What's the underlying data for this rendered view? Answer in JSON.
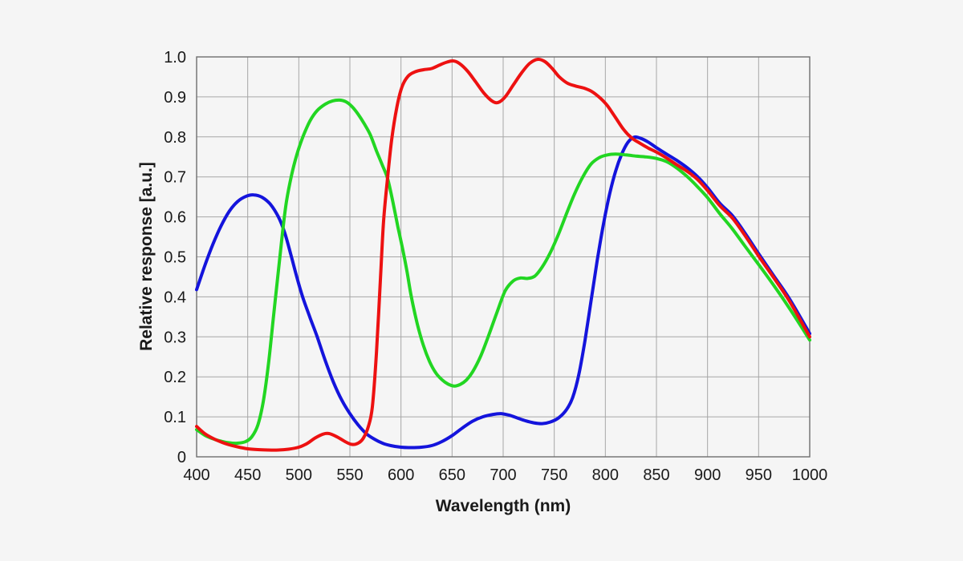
{
  "chart_data": {
    "type": "line",
    "title": "",
    "xlabel": "Wavelength (nm)",
    "ylabel": "Relative response [a.u.]",
    "xlim": [
      400,
      1000
    ],
    "ylim": [
      0,
      1.0
    ],
    "grid": true,
    "legend": "none",
    "x_ticks": [
      400,
      450,
      500,
      550,
      600,
      650,
      700,
      750,
      800,
      850,
      900,
      950,
      1000
    ],
    "x_tick_labels": [
      "400",
      "450",
      "500",
      "550",
      "600",
      "650",
      "700",
      "750",
      "800",
      "850",
      "900",
      "950",
      "1000"
    ],
    "y_ticks": [
      0,
      0.1,
      0.2,
      0.3,
      0.4,
      0.5,
      0.6,
      0.7,
      0.8,
      0.9,
      1.0
    ],
    "y_tick_labels": [
      "0",
      "0.1",
      "0.2",
      "0.3",
      "0.4",
      "0.5",
      "0.6",
      "0.7",
      "0.8",
      "0.9",
      "1.0"
    ],
    "colors": {
      "background": "#f5f5f5",
      "grid": "#a6a6a6",
      "frame": "#6e6e6e",
      "text": "#1a1a1a",
      "red_series": "#ed1111",
      "green_series": "#22d622",
      "blue_series": "#1414dc"
    },
    "series": [
      {
        "name": "blue-channel",
        "color_key": "blue_series",
        "points": [
          [
            400,
            0.418
          ],
          [
            408,
            0.478
          ],
          [
            416,
            0.532
          ],
          [
            424,
            0.578
          ],
          [
            432,
            0.614
          ],
          [
            440,
            0.638
          ],
          [
            448,
            0.651
          ],
          [
            456,
            0.655
          ],
          [
            464,
            0.649
          ],
          [
            472,
            0.632
          ],
          [
            480,
            0.6
          ],
          [
            486,
            0.562
          ],
          [
            492,
            0.508
          ],
          [
            498,
            0.45
          ],
          [
            504,
            0.398
          ],
          [
            511,
            0.348
          ],
          [
            518,
            0.3
          ],
          [
            526,
            0.24
          ],
          [
            534,
            0.186
          ],
          [
            542,
            0.142
          ],
          [
            550,
            0.108
          ],
          [
            558,
            0.08
          ],
          [
            566,
            0.058
          ],
          [
            574,
            0.044
          ],
          [
            582,
            0.034
          ],
          [
            590,
            0.028
          ],
          [
            600,
            0.024
          ],
          [
            610,
            0.023
          ],
          [
            620,
            0.024
          ],
          [
            630,
            0.028
          ],
          [
            640,
            0.038
          ],
          [
            650,
            0.053
          ],
          [
            660,
            0.072
          ],
          [
            670,
            0.089
          ],
          [
            680,
            0.1
          ],
          [
            690,
            0.106
          ],
          [
            698,
            0.108
          ],
          [
            706,
            0.104
          ],
          [
            714,
            0.097
          ],
          [
            722,
            0.09
          ],
          [
            730,
            0.085
          ],
          [
            738,
            0.083
          ],
          [
            746,
            0.087
          ],
          [
            754,
            0.097
          ],
          [
            762,
            0.118
          ],
          [
            768,
            0.148
          ],
          [
            774,
            0.205
          ],
          [
            780,
            0.29
          ],
          [
            786,
            0.39
          ],
          [
            792,
            0.49
          ],
          [
            798,
            0.58
          ],
          [
            804,
            0.655
          ],
          [
            810,
            0.714
          ],
          [
            816,
            0.757
          ],
          [
            822,
            0.786
          ],
          [
            828,
            0.799
          ],
          [
            834,
            0.797
          ],
          [
            842,
            0.787
          ],
          [
            850,
            0.773
          ],
          [
            860,
            0.757
          ],
          [
            870,
            0.741
          ],
          [
            880,
            0.723
          ],
          [
            890,
            0.701
          ],
          [
            900,
            0.673
          ],
          [
            912,
            0.634
          ],
          [
            924,
            0.604
          ],
          [
            936,
            0.562
          ],
          [
            950,
            0.508
          ],
          [
            965,
            0.452
          ],
          [
            980,
            0.396
          ],
          [
            1000,
            0.308
          ]
        ]
      },
      {
        "name": "green-channel",
        "color_key": "green_series",
        "points": [
          [
            400,
            0.068
          ],
          [
            408,
            0.054
          ],
          [
            416,
            0.045
          ],
          [
            424,
            0.039
          ],
          [
            432,
            0.035
          ],
          [
            440,
            0.034
          ],
          [
            448,
            0.038
          ],
          [
            454,
            0.05
          ],
          [
            460,
            0.08
          ],
          [
            465,
            0.135
          ],
          [
            470,
            0.225
          ],
          [
            475,
            0.345
          ],
          [
            480,
            0.465
          ],
          [
            484,
            0.56
          ],
          [
            488,
            0.64
          ],
          [
            493,
            0.705
          ],
          [
            498,
            0.755
          ],
          [
            504,
            0.8
          ],
          [
            511,
            0.84
          ],
          [
            518,
            0.866
          ],
          [
            526,
            0.882
          ],
          [
            533,
            0.89
          ],
          [
            540,
            0.892
          ],
          [
            546,
            0.888
          ],
          [
            552,
            0.876
          ],
          [
            558,
            0.857
          ],
          [
            564,
            0.833
          ],
          [
            570,
            0.805
          ],
          [
            576,
            0.765
          ],
          [
            582,
            0.728
          ],
          [
            587,
            0.695
          ],
          [
            592,
            0.638
          ],
          [
            597,
            0.575
          ],
          [
            602,
            0.515
          ],
          [
            606,
            0.462
          ],
          [
            610,
            0.402
          ],
          [
            616,
            0.332
          ],
          [
            622,
            0.278
          ],
          [
            628,
            0.238
          ],
          [
            634,
            0.21
          ],
          [
            640,
            0.193
          ],
          [
            646,
            0.182
          ],
          [
            652,
            0.177
          ],
          [
            658,
            0.181
          ],
          [
            664,
            0.192
          ],
          [
            670,
            0.212
          ],
          [
            678,
            0.252
          ],
          [
            686,
            0.305
          ],
          [
            694,
            0.362
          ],
          [
            702,
            0.415
          ],
          [
            710,
            0.44
          ],
          [
            717,
            0.447
          ],
          [
            724,
            0.446
          ],
          [
            731,
            0.452
          ],
          [
            738,
            0.474
          ],
          [
            746,
            0.51
          ],
          [
            754,
            0.556
          ],
          [
            762,
            0.608
          ],
          [
            770,
            0.658
          ],
          [
            778,
            0.7
          ],
          [
            786,
            0.732
          ],
          [
            794,
            0.748
          ],
          [
            802,
            0.755
          ],
          [
            810,
            0.757
          ],
          [
            820,
            0.755
          ],
          [
            830,
            0.752
          ],
          [
            840,
            0.75
          ],
          [
            850,
            0.746
          ],
          [
            860,
            0.738
          ],
          [
            870,
            0.722
          ],
          [
            880,
            0.701
          ],
          [
            890,
            0.676
          ],
          [
            900,
            0.648
          ],
          [
            912,
            0.608
          ],
          [
            924,
            0.571
          ],
          [
            936,
            0.529
          ],
          [
            950,
            0.481
          ],
          [
            965,
            0.428
          ],
          [
            980,
            0.372
          ],
          [
            1000,
            0.292
          ]
        ]
      },
      {
        "name": "red-channel",
        "color_key": "red_series",
        "points": [
          [
            400,
            0.076
          ],
          [
            408,
            0.058
          ],
          [
            416,
            0.046
          ],
          [
            424,
            0.037
          ],
          [
            432,
            0.03
          ],
          [
            440,
            0.025
          ],
          [
            450,
            0.02
          ],
          [
            460,
            0.018
          ],
          [
            470,
            0.017
          ],
          [
            480,
            0.017
          ],
          [
            490,
            0.019
          ],
          [
            500,
            0.024
          ],
          [
            508,
            0.033
          ],
          [
            516,
            0.047
          ],
          [
            524,
            0.057
          ],
          [
            530,
            0.058
          ],
          [
            538,
            0.049
          ],
          [
            546,
            0.037
          ],
          [
            552,
            0.031
          ],
          [
            558,
            0.034
          ],
          [
            563,
            0.046
          ],
          [
            568,
            0.075
          ],
          [
            572,
            0.125
          ],
          [
            576,
            0.26
          ],
          [
            580,
            0.45
          ],
          [
            583,
            0.59
          ],
          [
            587,
            0.7
          ],
          [
            591,
            0.795
          ],
          [
            596,
            0.875
          ],
          [
            601,
            0.925
          ],
          [
            607,
            0.952
          ],
          [
            614,
            0.963
          ],
          [
            622,
            0.968
          ],
          [
            630,
            0.971
          ],
          [
            638,
            0.98
          ],
          [
            645,
            0.987
          ],
          [
            651,
            0.99
          ],
          [
            657,
            0.984
          ],
          [
            665,
            0.965
          ],
          [
            673,
            0.938
          ],
          [
            681,
            0.91
          ],
          [
            689,
            0.89
          ],
          [
            695,
            0.886
          ],
          [
            702,
            0.9
          ],
          [
            710,
            0.93
          ],
          [
            718,
            0.96
          ],
          [
            726,
            0.984
          ],
          [
            734,
            0.994
          ],
          [
            741,
            0.988
          ],
          [
            748,
            0.971
          ],
          [
            755,
            0.95
          ],
          [
            763,
            0.934
          ],
          [
            771,
            0.927
          ],
          [
            779,
            0.922
          ],
          [
            787,
            0.913
          ],
          [
            795,
            0.897
          ],
          [
            802,
            0.878
          ],
          [
            810,
            0.848
          ],
          [
            818,
            0.818
          ],
          [
            826,
            0.797
          ],
          [
            834,
            0.784
          ],
          [
            842,
            0.772
          ],
          [
            850,
            0.762
          ],
          [
            860,
            0.747
          ],
          [
            870,
            0.73
          ],
          [
            880,
            0.714
          ],
          [
            890,
            0.694
          ],
          [
            900,
            0.666
          ],
          [
            912,
            0.628
          ],
          [
            924,
            0.598
          ],
          [
            936,
            0.556
          ],
          [
            950,
            0.502
          ],
          [
            965,
            0.447
          ],
          [
            980,
            0.39
          ],
          [
            1000,
            0.3
          ]
        ]
      }
    ]
  }
}
